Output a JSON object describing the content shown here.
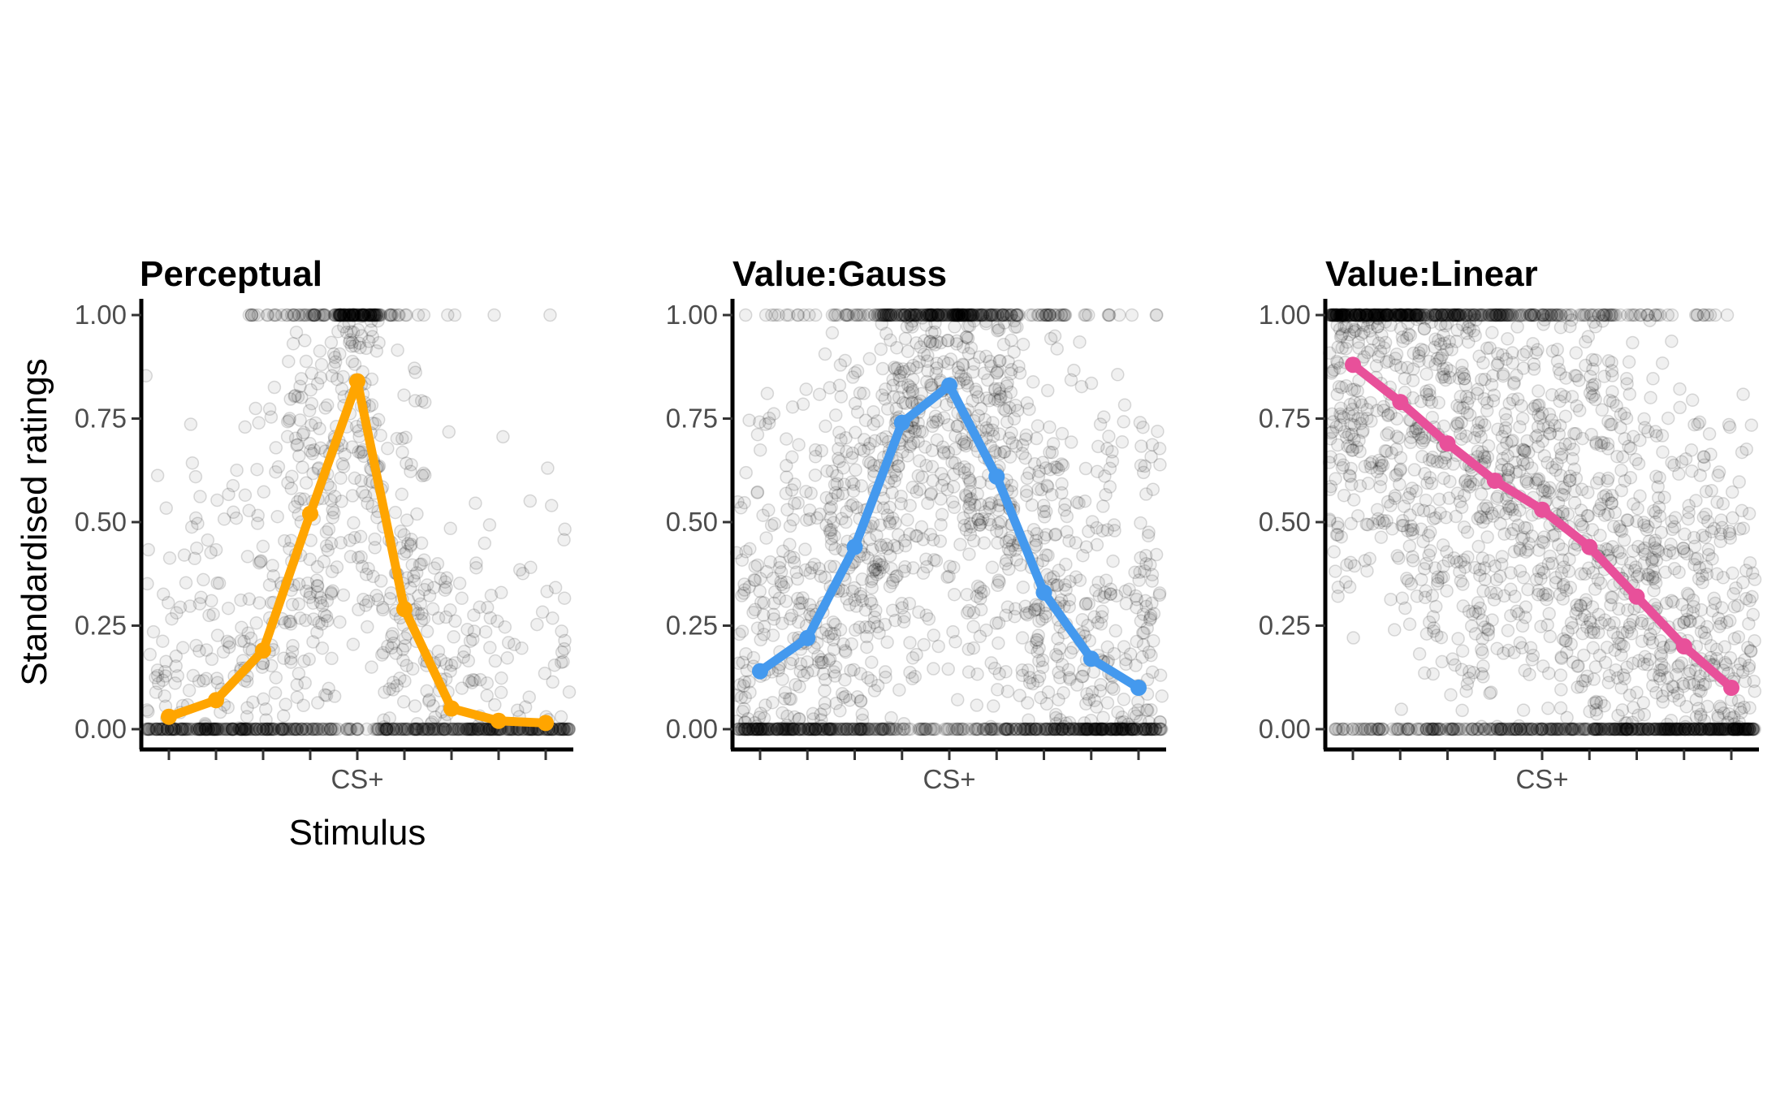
{
  "chart_data": [
    {
      "type": "scatter",
      "title": "Perceptual",
      "xlabel": "Stimulus",
      "ylabel": "Standardised ratings",
      "x_tick_labels": [
        "",
        "",
        "",
        "",
        "CS+",
        "",
        "",
        "",
        ""
      ],
      "y_ticks": [
        "0.00",
        "0.25",
        "0.50",
        "0.75",
        "1.00"
      ],
      "ylim": [
        0,
        1
      ],
      "grid": false,
      "line_color": "#FFA500",
      "series": [
        {
          "values": [
            0.03,
            0.07,
            0.19,
            0.52,
            0.84,
            0.29,
            0.05,
            0.02,
            0.015
          ]
        }
      ],
      "scatter_profile": [
        0.15,
        0.2,
        0.35,
        0.6,
        0.85,
        0.45,
        0.2,
        0.12,
        0.12
      ]
    },
    {
      "type": "scatter",
      "title": "Value:Gauss",
      "xlabel": "",
      "ylabel": "",
      "x_tick_labels": [
        "",
        "",
        "",
        "",
        "CS+",
        "",
        "",
        "",
        ""
      ],
      "y_ticks": [
        "0.00",
        "0.25",
        "0.50",
        "0.75",
        "1.00"
      ],
      "ylim": [
        0,
        1
      ],
      "grid": false,
      "line_color": "#4499EE",
      "series": [
        {
          "values": [
            0.14,
            0.22,
            0.44,
            0.74,
            0.83,
            0.61,
            0.33,
            0.17,
            0.1
          ]
        }
      ],
      "scatter_profile": [
        0.5,
        0.6,
        0.75,
        0.9,
        0.95,
        0.85,
        0.7,
        0.55,
        0.45
      ]
    },
    {
      "type": "scatter",
      "title": "Value:Linear",
      "xlabel": "",
      "ylabel": "",
      "x_tick_labels": [
        "",
        "",
        "",
        "",
        "CS+",
        "",
        "",
        "",
        ""
      ],
      "y_ticks": [
        "0.00",
        "0.25",
        "0.50",
        "0.75",
        "1.00"
      ],
      "ylim": [
        0,
        1
      ],
      "grid": false,
      "line_color": "#E8509A",
      "series": [
        {
          "values": [
            0.88,
            0.79,
            0.69,
            0.6,
            0.53,
            0.44,
            0.32,
            0.2,
            0.1
          ]
        }
      ],
      "scatter_profile": [
        0.95,
        0.9,
        0.9,
        0.85,
        0.85,
        0.8,
        0.8,
        0.75,
        0.7
      ]
    }
  ]
}
